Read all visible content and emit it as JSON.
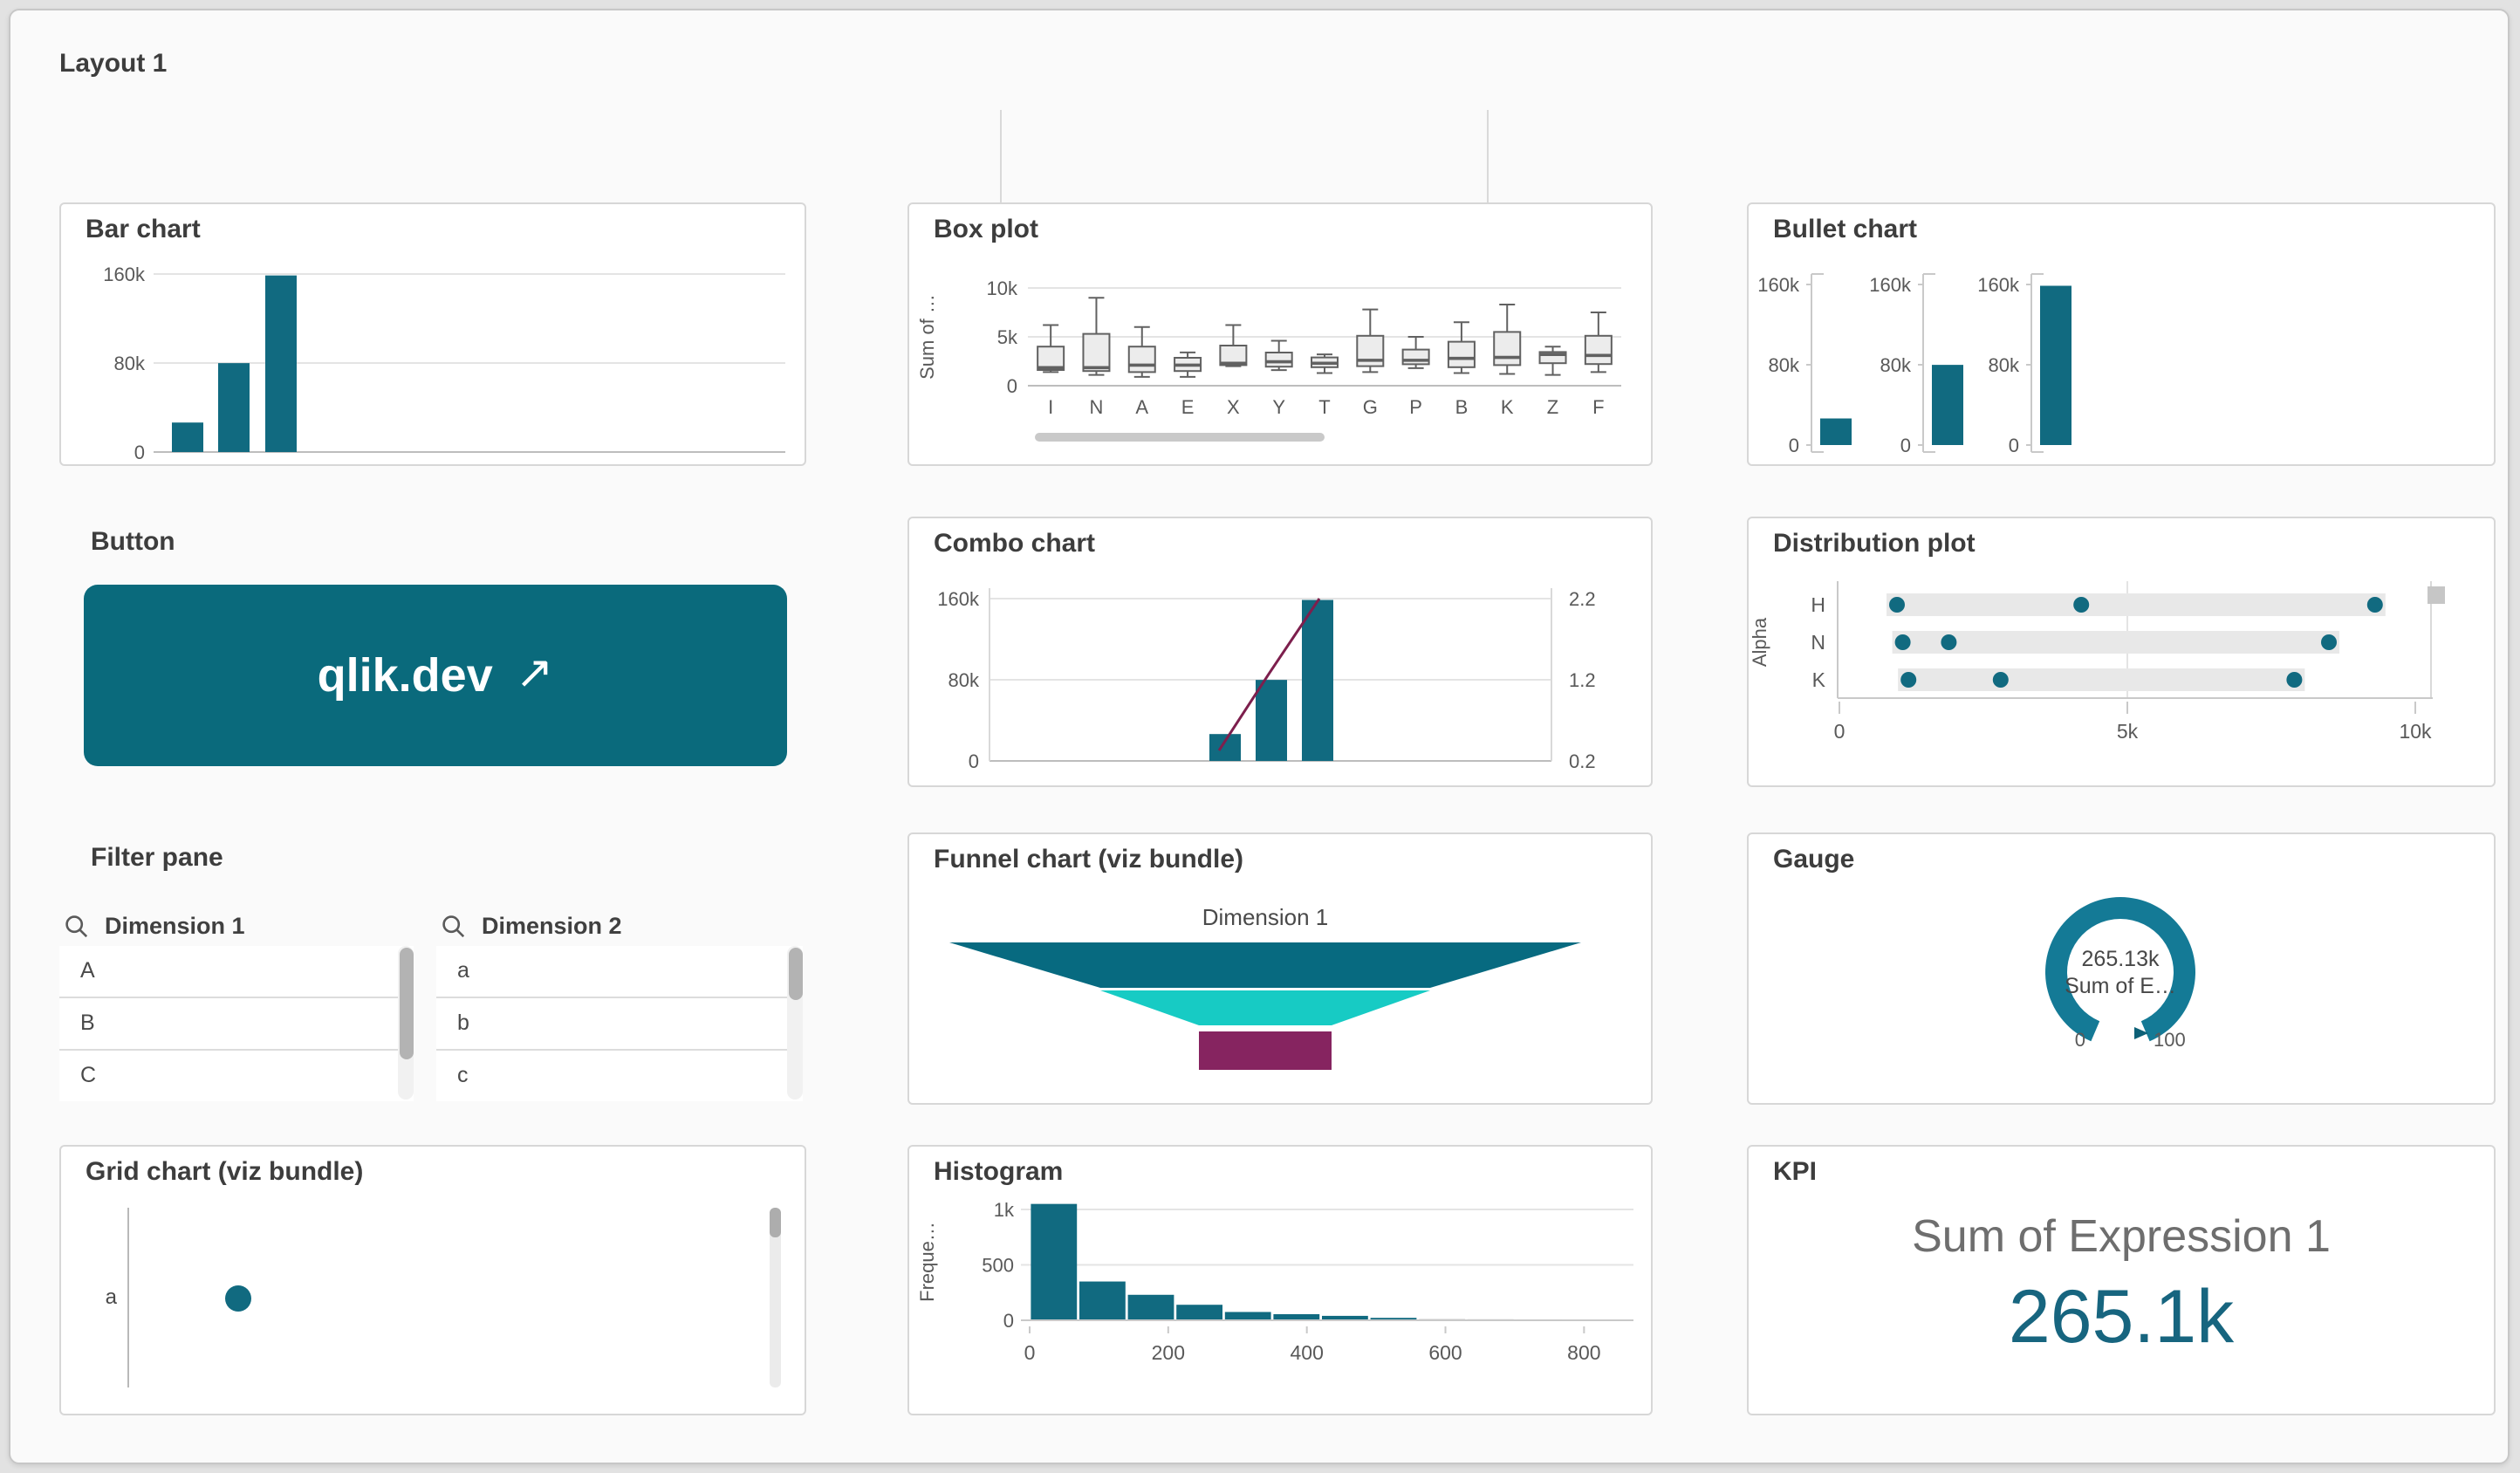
{
  "app": {
    "layout_title": "Layout 1"
  },
  "colors": {
    "teal": "#116a80",
    "maroon": "#7d1f4d",
    "funnel_teal": "#076a80",
    "cyan": "#17cbc4",
    "magenta": "#862460",
    "gauge_teal": "#147a96",
    "gauge_pointer": "#0d6077",
    "kpi_value": "#17657f",
    "button_bg": "#0a6a7c",
    "box_fill": "#ececec",
    "box_stroke": "#616161",
    "band": "#e8e8e8",
    "gray_bar": "#cdcdcd",
    "grid_line": "#e4e4e4",
    "zero_line": "#bdbdbd",
    "axis_light": "#c9c9c9",
    "axis_text": "#595959",
    "scroll_thumb": "#b3b3b3",
    "scroll_track": "#f1f1f1"
  },
  "cards": {
    "bar_chart": {
      "title": "Bar chart"
    },
    "box_plot": {
      "title": "Box plot"
    },
    "bullet_chart": {
      "title": "Bullet chart"
    },
    "button": {
      "title": "Button",
      "label": "qlik.dev",
      "icon": "↗"
    },
    "combo_chart": {
      "title": "Combo chart"
    },
    "distribution_plot": {
      "title": "Distribution plot"
    },
    "filter_pane": {
      "title": "Filter pane",
      "listboxes": [
        {
          "title": "Dimension 1",
          "items": [
            "A",
            "B",
            "C"
          ]
        },
        {
          "title": "Dimension 2",
          "items": [
            "a",
            "b",
            "c"
          ]
        }
      ]
    },
    "funnel_chart": {
      "title": "Funnel chart (viz bundle)"
    },
    "gauge": {
      "title": "Gauge"
    },
    "grid_chart": {
      "title": "Grid chart (viz bundle)"
    },
    "histogram": {
      "title": "Histogram"
    },
    "kpi": {
      "title": "KPI",
      "label": "Sum of Expression 1",
      "value": "265.1k"
    }
  },
  "chart_data": [
    {
      "id": "bar-chart",
      "type": "bar",
      "title": "Bar chart",
      "values": [
        26500,
        79900,
        158700
      ],
      "yticks": [
        {
          "v": 0,
          "t": "0"
        },
        {
          "v": 80000,
          "t": "80k"
        },
        {
          "v": 160000,
          "t": "160k"
        }
      ],
      "ylim": [
        0,
        170000
      ],
      "grid": true
    },
    {
      "id": "bullet-chart",
      "type": "bullet",
      "title": "Bullet chart",
      "panels": [
        {
          "value": 26500
        },
        {
          "value": 79900
        },
        {
          "value": 158700
        }
      ],
      "yticks": [
        {
          "v": 160000,
          "t": "160k"
        },
        {
          "v": 80000,
          "t": "80k"
        },
        {
          "v": 0,
          "t": "0"
        }
      ],
      "ylim": [
        0,
        170000
      ]
    },
    {
      "id": "combo-chart",
      "type": "combo",
      "title": "Combo chart",
      "bar_values": [
        26500,
        79900,
        158700
      ],
      "line_values": [
        0.33,
        1.27,
        2.2
      ],
      "left_yticks": [
        {
          "v": 0,
          "t": "0"
        },
        {
          "v": 80000,
          "t": "80k"
        },
        {
          "v": 160000,
          "t": "160k"
        }
      ],
      "right_yticks": [
        {
          "v": 0.2,
          "t": "0.2"
        },
        {
          "v": 1.2,
          "t": "1.2"
        },
        {
          "v": 2.2,
          "t": "2.2"
        }
      ],
      "left_ylim": [
        0,
        170000
      ],
      "right_ylim": [
        0.2,
        2.3
      ]
    },
    {
      "id": "box-plot",
      "type": "box",
      "title": "Box plot",
      "ylabel": "Sum of …",
      "categories": [
        "I",
        "N",
        "A",
        "E",
        "X",
        "Y",
        "T",
        "G",
        "P",
        "B",
        "K",
        "Z",
        "F"
      ],
      "boxes": [
        [
          1400,
          1600,
          1850,
          4000,
          6200
        ],
        [
          1100,
          1500,
          1850,
          5300,
          9000
        ],
        [
          900,
          1400,
          2100,
          4000,
          6000
        ],
        [
          900,
          1500,
          2100,
          2850,
          3400
        ],
        [
          2000,
          2100,
          2300,
          4100,
          6200
        ],
        [
          1600,
          1950,
          2450,
          3400,
          4600
        ],
        [
          1300,
          1900,
          2300,
          2900,
          3200
        ],
        [
          1400,
          2000,
          2600,
          5100,
          7800
        ],
        [
          1800,
          2200,
          2600,
          3700,
          5000
        ],
        [
          1300,
          1900,
          2800,
          4500,
          6500
        ],
        [
          1200,
          2100,
          2900,
          5500,
          8300
        ],
        [
          1100,
          2300,
          3200,
          3450,
          4000
        ],
        [
          1400,
          2200,
          3100,
          5100,
          7500
        ]
      ],
      "yticks": [
        {
          "v": 0,
          "t": "0"
        },
        {
          "v": 5000,
          "t": "5k"
        },
        {
          "v": 10000,
          "t": "10k"
        }
      ],
      "ylim": [
        0,
        10700
      ],
      "has_hscrollbar": true
    },
    {
      "id": "distribution-plot",
      "type": "distribution",
      "title": "Distribution plot",
      "ylabel": "Alpha",
      "categories": [
        "H",
        "N",
        "K"
      ],
      "points": [
        [
          1000,
          4200,
          9300
        ],
        [
          1100,
          1900,
          8500
        ],
        [
          1200,
          2800,
          7900
        ]
      ],
      "xticks": [
        {
          "v": 0,
          "t": "0"
        },
        {
          "v": 5000,
          "t": "5k"
        },
        {
          "v": 10000,
          "t": "10k"
        }
      ],
      "xlim": [
        0,
        10000
      ]
    },
    {
      "id": "funnel-chart",
      "type": "funnel",
      "title": "Funnel chart (viz bundle)",
      "dimension_label": "Dimension 1",
      "segment_colors": [
        "#076a80",
        "#17cbc4",
        "#862460"
      ],
      "segment_relative_widths": [
        1.0,
        0.52,
        0.21
      ]
    },
    {
      "id": "gauge",
      "type": "gauge",
      "title": "Gauge",
      "value_label": "265.13k",
      "measure_label": "Sum of E…",
      "min_label": "0",
      "max_label": "100",
      "range": [
        0,
        100
      ]
    },
    {
      "id": "grid-chart",
      "type": "grid",
      "title": "Grid chart (viz bundle)",
      "row_label": "a",
      "points": [
        {
          "row": "a",
          "size": 1
        }
      ]
    },
    {
      "id": "histogram",
      "type": "histogram",
      "title": "Histogram",
      "ylabel": "Freque…",
      "bin_width": 70,
      "bin_start": 0,
      "values": [
        1050,
        350,
        230,
        140,
        75,
        55,
        40,
        22,
        12,
        10,
        8,
        6
      ],
      "gray_from_index": 8,
      "yticks": [
        {
          "v": 0,
          "t": "0"
        },
        {
          "v": 500,
          "t": "500"
        },
        {
          "v": 1000,
          "t": "1k"
        }
      ],
      "xticks": [
        {
          "v": 0,
          "t": "0"
        },
        {
          "v": 200,
          "t": "200"
        },
        {
          "v": 400,
          "t": "400"
        },
        {
          "v": 600,
          "t": "600"
        },
        {
          "v": 800,
          "t": "800"
        }
      ],
      "ylim": [
        0,
        1100
      ]
    },
    {
      "id": "kpi",
      "type": "kpi",
      "title": "KPI",
      "label": "Sum of Expression 1",
      "value": "265.1k"
    }
  ]
}
